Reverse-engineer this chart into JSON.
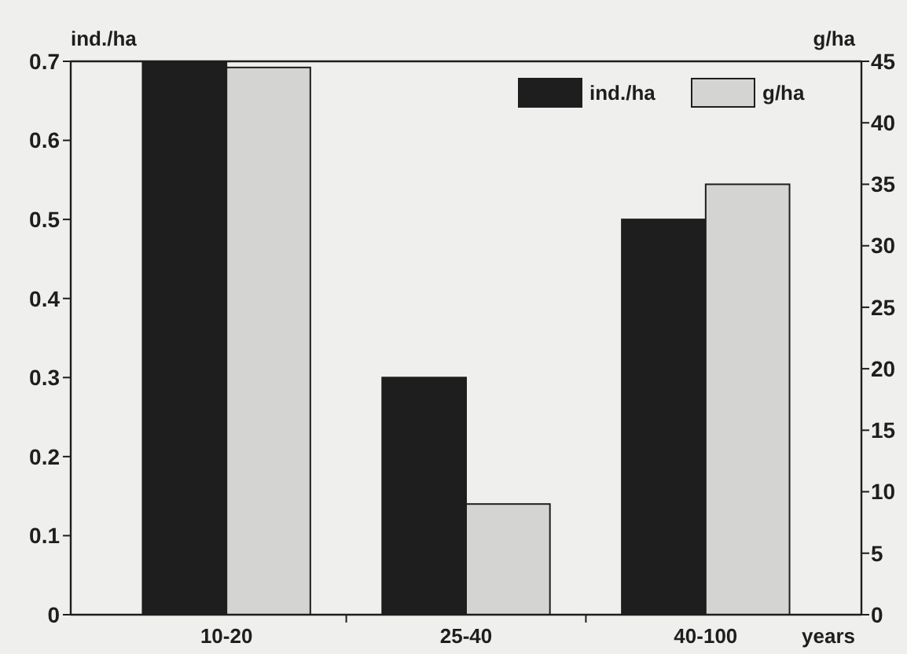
{
  "chart_data": {
    "type": "bar",
    "xlabel": "years",
    "ylabel": "ind./ha",
    "y2label": "g/ha",
    "categories": [
      "10-20",
      "25-40",
      "40-100"
    ],
    "series": [
      {
        "name": "ind./ha",
        "color": "#1e1e1e",
        "values": [
          0.7,
          0.3,
          0.5
        ]
      },
      {
        "name": "g/ha",
        "color": "#d4d4d2",
        "values": [
          44.5,
          9,
          35
        ],
        "axis": "y2"
      }
    ],
    "ylim": [
      0,
      0.7
    ],
    "yticks": [
      0,
      0.1,
      0.2,
      0.3,
      0.4,
      0.5,
      0.6,
      0.7
    ],
    "y2lim": [
      0,
      45
    ],
    "y2ticks": [
      0,
      5,
      10,
      15,
      20,
      25,
      30,
      35,
      40,
      45
    ],
    "legend": "top right",
    "grid": false
  }
}
